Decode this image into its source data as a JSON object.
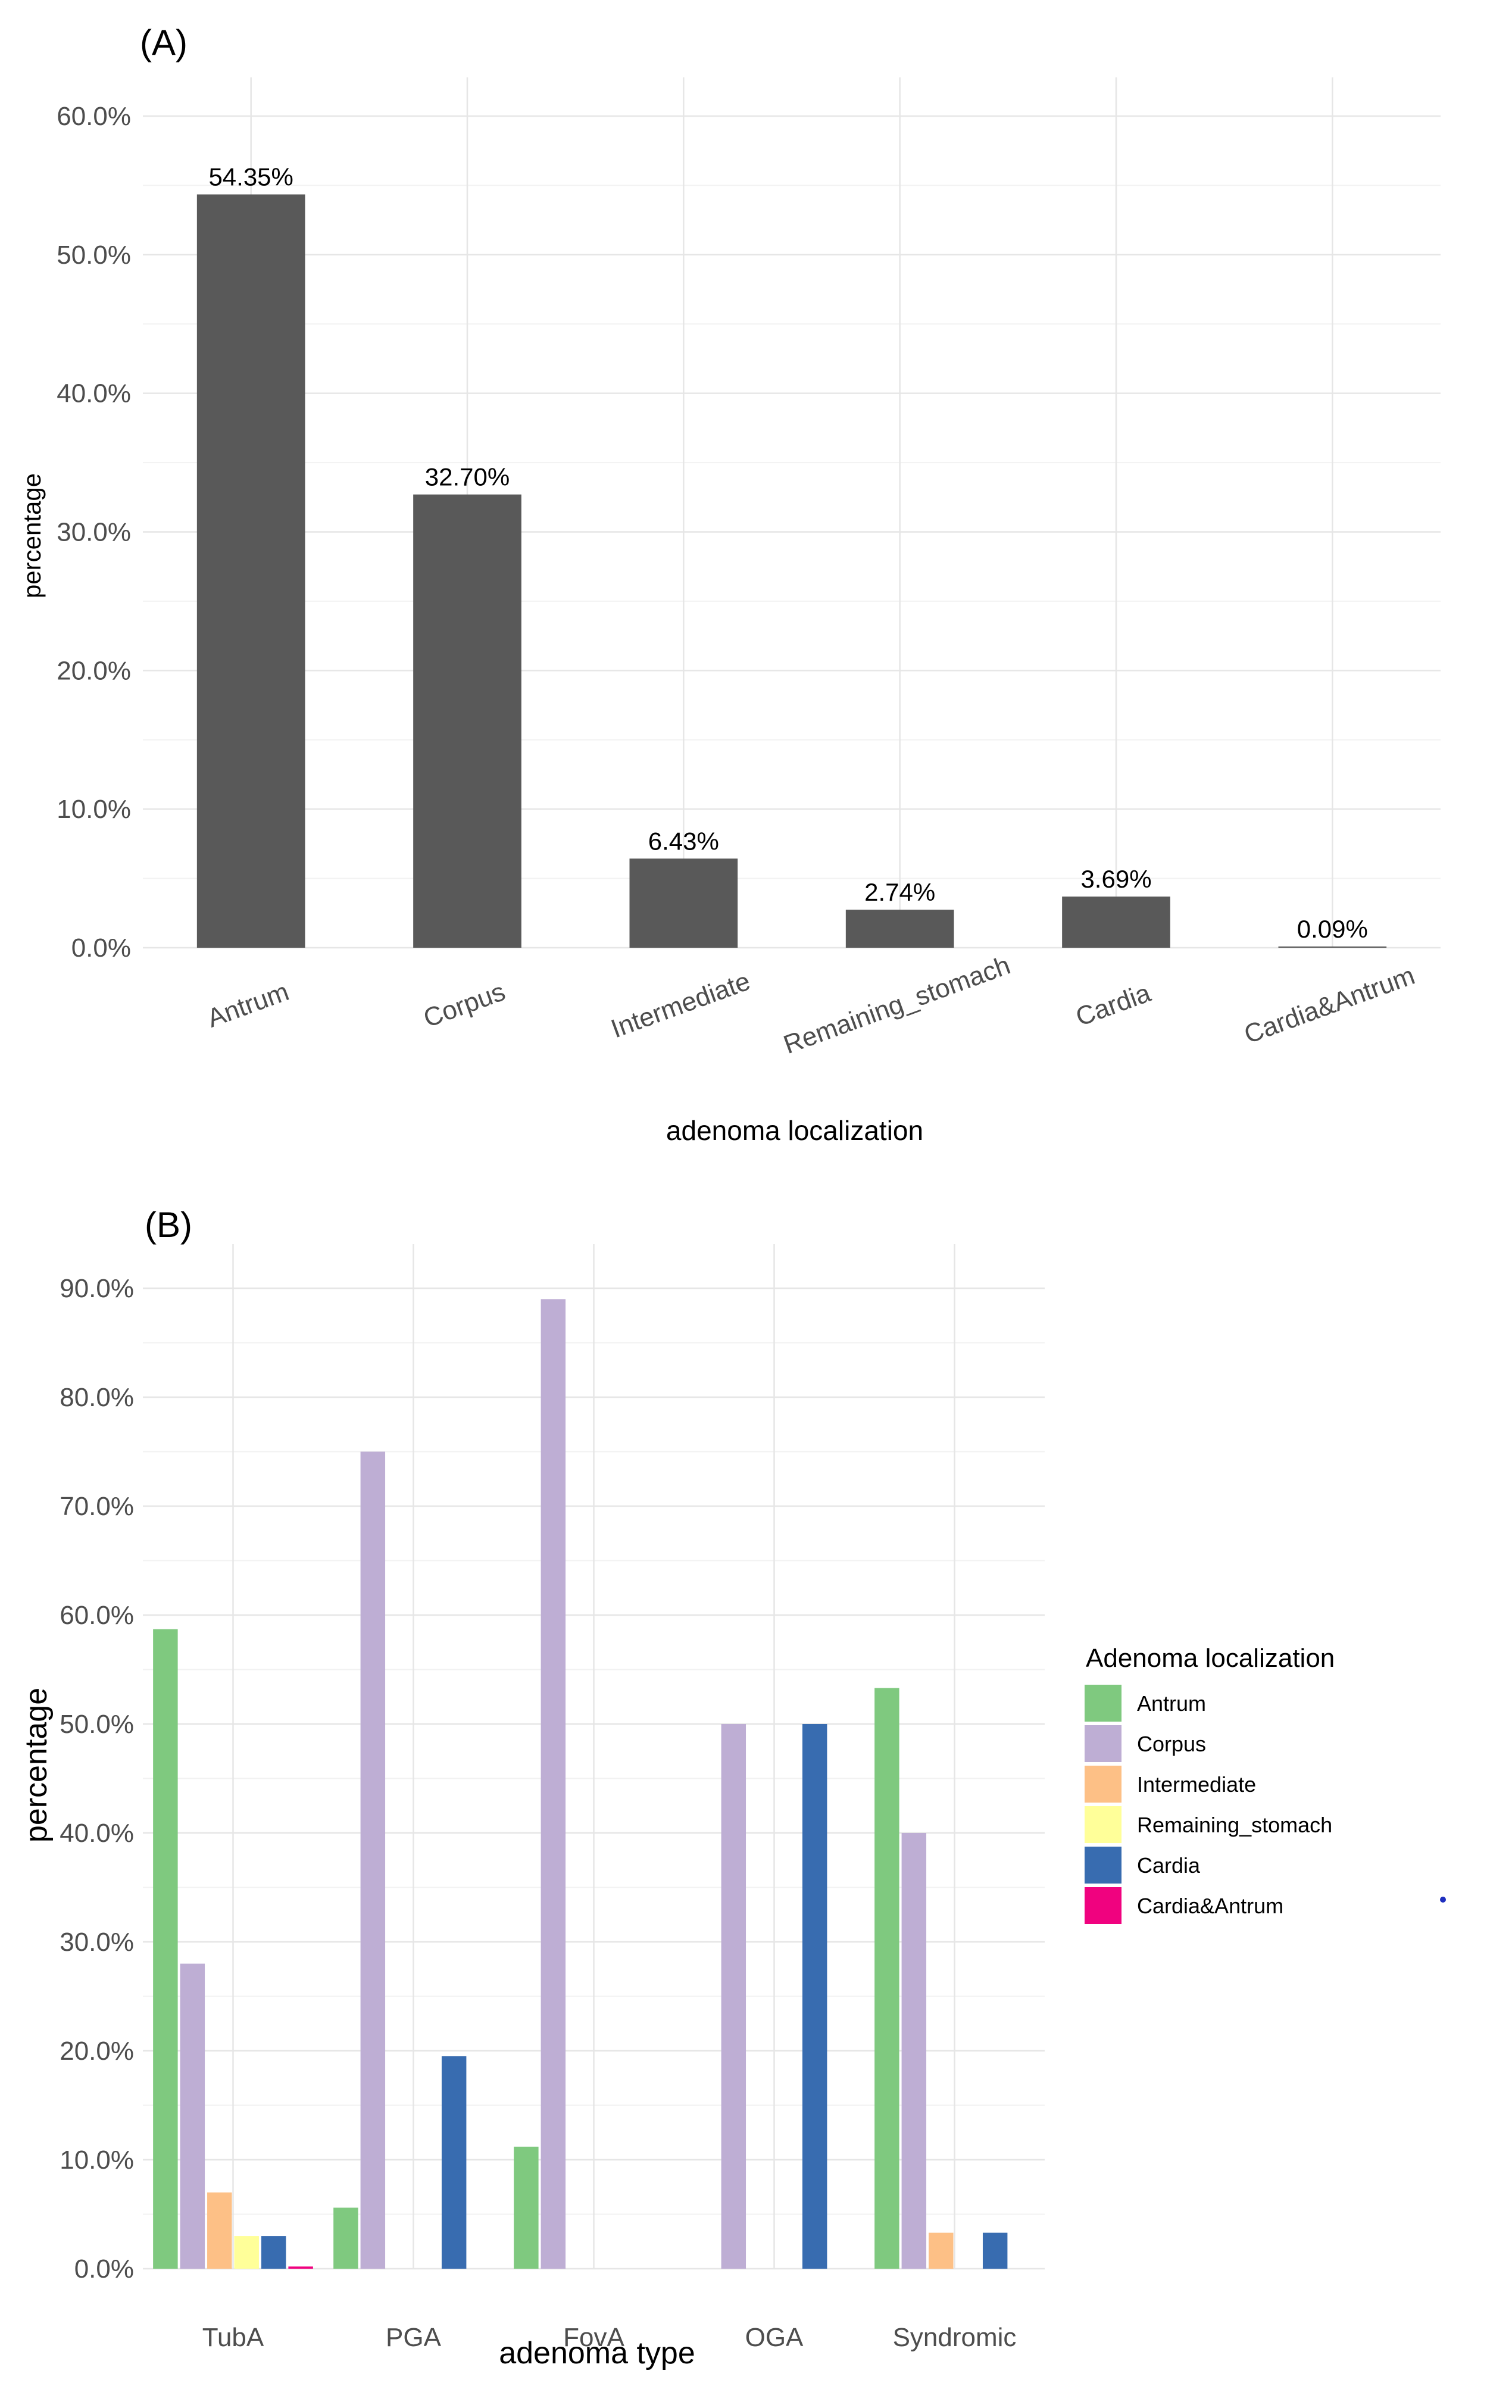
{
  "chart_data": [
    {
      "panel_label": "(A)",
      "type": "bar",
      "title": "",
      "xlabel": "adenoma localization",
      "ylabel": "percentage",
      "categories": [
        "Antrum",
        "Corpus",
        "Intermediate",
        "Remaining_stomach",
        "Cardia",
        "Cardia&Antrum"
      ],
      "values": [
        54.35,
        32.7,
        6.43,
        2.74,
        3.69,
        0.09
      ],
      "data_labels": [
        "54.35%",
        "32.70%",
        "6.43%",
        "2.74%",
        "3.69%",
        "0.09%"
      ],
      "ylim": [
        0,
        60
      ],
      "yticks": [
        0,
        10,
        20,
        30,
        40,
        50,
        60
      ],
      "ytick_labels": [
        "0.0%",
        "10.0%",
        "20.0%",
        "30.0%",
        "40.0%",
        "50.0%",
        "60.0%"
      ],
      "bar_color": "#595959",
      "grid": true,
      "legend": "none"
    },
    {
      "panel_label": "(B)",
      "type": "bar",
      "title": "",
      "xlabel": "adenoma type",
      "ylabel": "percentage",
      "categories": [
        "TubA",
        "PGA",
        "FovA",
        "OGA",
        "Syndromic"
      ],
      "series": [
        {
          "name": "Antrum",
          "color": "#7fc97f",
          "values": [
            58.7,
            5.6,
            11.2,
            0,
            53.3
          ]
        },
        {
          "name": "Corpus",
          "color": "#beaed4",
          "values": [
            28.0,
            75.0,
            89.0,
            50.0,
            40.0
          ]
        },
        {
          "name": "Intermediate",
          "color": "#fdc086",
          "values": [
            7.0,
            0,
            0,
            0,
            3.3
          ]
        },
        {
          "name": "Remaining_stomach",
          "color": "#ffff99",
          "values": [
            3.0,
            0,
            0,
            0,
            0
          ]
        },
        {
          "name": "Cardia",
          "color": "#386cb0",
          "values": [
            3.0,
            19.5,
            0,
            50.0,
            3.3
          ]
        },
        {
          "name": "Cardia&Antrum",
          "color": "#f0027f",
          "values": [
            0.2,
            0,
            0,
            0,
            0
          ]
        }
      ],
      "ylim": [
        0,
        90
      ],
      "yticks": [
        0,
        10,
        20,
        30,
        40,
        50,
        60,
        70,
        80,
        90
      ],
      "ytick_labels": [
        "0.0%",
        "10.0%",
        "20.0%",
        "30.0%",
        "40.0%",
        "50.0%",
        "60.0%",
        "70.0%",
        "80.0%",
        "90.0%"
      ],
      "legend_title": "Adenoma localization",
      "legend": "right",
      "grid": true
    }
  ]
}
